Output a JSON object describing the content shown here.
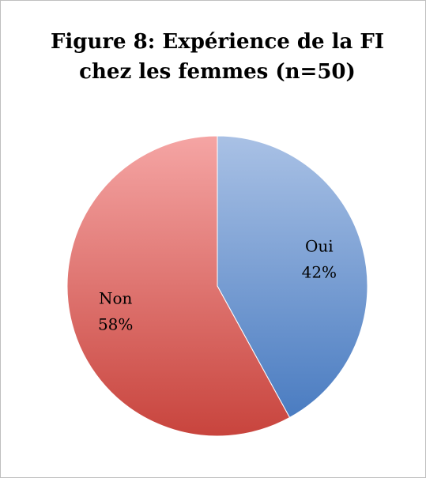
{
  "chart_data": {
    "type": "pie",
    "title": "Figure 8: Expérience de la FI chez les femmes (n=50)",
    "categories": [
      "Oui",
      "Non"
    ],
    "values": [
      42,
      58
    ],
    "value_labels": [
      "42%",
      "58%"
    ],
    "colors": [
      [
        "#a9c1e5",
        "#4a7cc1"
      ],
      [
        "#f5a5a4",
        "#c8443d"
      ]
    ]
  }
}
